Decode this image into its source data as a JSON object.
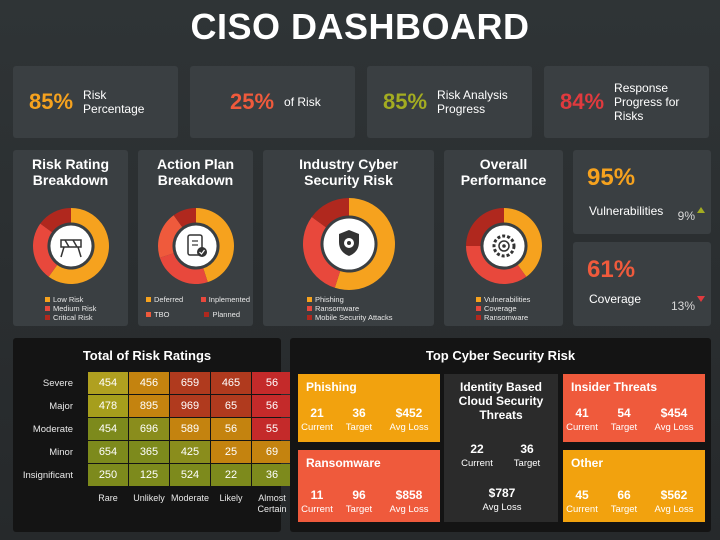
{
  "title": "CISO DASHBOARD",
  "kpis": [
    {
      "value": "85%",
      "label": "Risk Percentage",
      "color": "#f6a21e"
    },
    {
      "value": "25%",
      "label": "of Risk",
      "color": "#ef5a3c"
    },
    {
      "value": "85%",
      "label": "Risk Analysis Progress",
      "color": "#a3ac21"
    },
    {
      "value": "84%",
      "label": "Response Progress for Risks",
      "color": "#e03a3e"
    }
  ],
  "donuts": [
    {
      "title_line1": "Risk Rating",
      "title_line2": "Breakdown",
      "icon": "construction-barrier-icon",
      "legend": [
        "Low Risk",
        "Medium  Risk",
        "Critical Risk"
      ],
      "colors": [
        "#f6a21e",
        "#e8483c",
        "#b0281e"
      ],
      "values": [
        60,
        25,
        15
      ]
    },
    {
      "title_line1": "Action Plan",
      "title_line2": "Breakdown",
      "icon": "document-check-icon",
      "legend": [
        "Deferred",
        "Inplemented",
        "TBO",
        "Planned"
      ],
      "colors": [
        "#f6a21e",
        "#e8483c",
        "#ef5a3c",
        "#b0281e"
      ],
      "values": [
        45,
        25,
        20,
        10
      ]
    },
    {
      "title_line1": "Industry Cyber",
      "title_line2": "Security Risk",
      "icon": "shield-gear-icon",
      "legend": [
        "Phishing",
        "Ransomware",
        "Mobile Security Attacks"
      ],
      "colors": [
        "#f6a21e",
        "#e8483c",
        "#b0281e"
      ],
      "values": [
        55,
        30,
        15
      ]
    },
    {
      "title_line1": "Overall",
      "title_line2": "Performance",
      "icon": "gear-target-icon",
      "legend": [
        "Vulnerabilities",
        "Coverage",
        "Ransomware"
      ],
      "colors": [
        "#f6a21e",
        "#e8483c",
        "#b0281e"
      ],
      "values": [
        40,
        35,
        25
      ]
    }
  ],
  "side_kpis": [
    {
      "value": "95%",
      "label": "Vulnerabilities",
      "delta": "9%",
      "direction": "up",
      "color": "#f6a21e",
      "arrow_color": "#a3ac21"
    },
    {
      "value": "61%",
      "label": "Coverage",
      "delta": "13%",
      "direction": "down",
      "color": "#ef5a3c",
      "arrow_color": "#e03a3e"
    }
  ],
  "risk_ratings": {
    "title": "Total of Risk Ratings",
    "rows": [
      "Severe",
      "Major",
      "Moderate",
      "Minor",
      "Insignificant"
    ],
    "columns": [
      "Rare",
      "Unlikely",
      "Moderate",
      "Likely",
      "Almost Certain"
    ],
    "values": [
      [
        "454",
        "456",
        "659",
        "465",
        "56"
      ],
      [
        "478",
        "895",
        "969",
        "65",
        "56"
      ],
      [
        "454",
        "696",
        "589",
        "56",
        "55"
      ],
      [
        "654",
        "365",
        "425",
        "25",
        "69"
      ],
      [
        "250",
        "125",
        "524",
        "22",
        "36"
      ]
    ],
    "colors": [
      [
        "#b0a020",
        "#c4830f",
        "#b03a1e",
        "#b03a1e",
        "#c42a2a"
      ],
      [
        "#a69e1c",
        "#c4830f",
        "#b03a1e",
        "#b03a1e",
        "#c42a2a"
      ],
      [
        "#7d8a1c",
        "#8a8d1c",
        "#c4830f",
        "#c4830f",
        "#c42a2a"
      ],
      [
        "#7d8a1c",
        "#7d8a1c",
        "#8a8d1c",
        "#c4830f",
        "#c4830f"
      ],
      [
        "#7d8a1c",
        "#7d8a1c",
        "#7d8a1c",
        "#7d8a1c",
        "#7d8a1c"
      ]
    ]
  },
  "top_risks": {
    "title": "Top Cyber Security Risk",
    "items": [
      {
        "name": "Phishing",
        "current": "21",
        "target": "36",
        "avg_loss": "$452",
        "color": "#f2a20e"
      },
      {
        "name": "Ransomware",
        "current": "11",
        "target": "96",
        "avg_loss": "$858",
        "color": "#ef5a3c"
      },
      {
        "name": "Identity Based Cloud Security Threats",
        "current": "22",
        "target": "36",
        "avg_loss": "$787",
        "color": "#2b2b2b"
      },
      {
        "name": "Insider Threats",
        "current": "41",
        "target": "54",
        "avg_loss": "$454",
        "color": "#ef5a3c"
      },
      {
        "name": "Other",
        "current": "45",
        "target": "66",
        "avg_loss": "$562",
        "color": "#f2a20e"
      }
    ],
    "labels": {
      "current": "Current",
      "target": "Target",
      "avg_loss": "Avg Loss"
    }
  }
}
